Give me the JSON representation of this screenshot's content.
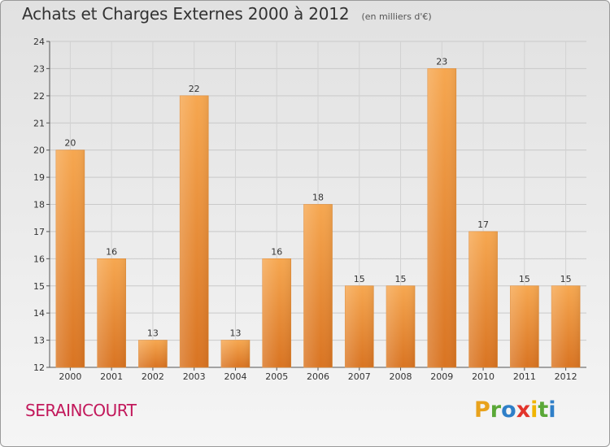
{
  "title": "Achats et Charges Externes 2000 à 2012",
  "unit": "(en milliers d'€)",
  "commune": "SERAINCOURT",
  "logo": {
    "letters": [
      "P",
      "r",
      "o",
      "x",
      "i",
      "t",
      "i"
    ],
    "colors": [
      "#e8a21c",
      "#5aa837",
      "#2f7fc8",
      "#e2342b",
      "#f0b400",
      "#5aa837",
      "#2f7fc8"
    ]
  },
  "colors": {
    "bar_light": "#f6a750",
    "bar_dark": "#d97422",
    "bar_edge": "#e08a35"
  },
  "chart_data": {
    "type": "bar",
    "categories": [
      "2000",
      "2001",
      "2002",
      "2003",
      "2004",
      "2005",
      "2006",
      "2007",
      "2008",
      "2009",
      "2010",
      "2011",
      "2012"
    ],
    "values": [
      20,
      16,
      13,
      22,
      13,
      16,
      18,
      15,
      15,
      23,
      17,
      15,
      15
    ],
    "data_labels": [
      "20",
      "16",
      "13",
      "22",
      "13",
      "16",
      "18",
      "15",
      "15",
      "23",
      "17",
      "15",
      "15"
    ],
    "ylim": [
      12,
      24
    ],
    "yticks": [
      "12",
      "13",
      "14",
      "15",
      "16",
      "17",
      "18",
      "19",
      "20",
      "21",
      "22",
      "23",
      "24"
    ],
    "grid": true,
    "xlabel": "",
    "ylabel": ""
  }
}
